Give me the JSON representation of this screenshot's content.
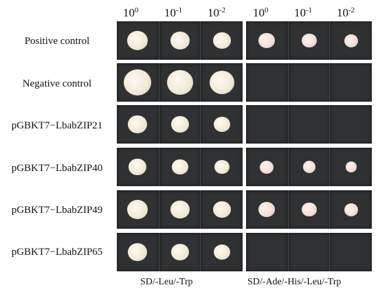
{
  "dilutions": [
    {
      "base": "10",
      "exp": "0"
    },
    {
      "base": "10",
      "exp": "-1"
    },
    {
      "base": "10",
      "exp": "-2"
    }
  ],
  "rows": [
    {
      "label": "Positive control",
      "left": [
        1,
        1,
        1
      ],
      "right": [
        1,
        1,
        1
      ]
    },
    {
      "label": "Negative control",
      "left": [
        1,
        1,
        1
      ],
      "right": [
        0,
        0,
        0
      ]
    },
    {
      "label": "pGBKT7−LbabZIP21",
      "left": [
        1,
        1,
        1
      ],
      "right": [
        0,
        0,
        0
      ]
    },
    {
      "label": "pGBKT7−LbabZIP40",
      "left": [
        1,
        1,
        1
      ],
      "right": [
        1,
        1,
        1
      ]
    },
    {
      "label": "pGBKT7−LbabZIP49",
      "left": [
        1,
        1,
        1
      ],
      "right": [
        1,
        1,
        1
      ]
    },
    {
      "label": "pGBKT7−LbabZIP65",
      "left": [
        1,
        1,
        1
      ],
      "right": [
        0,
        0,
        0
      ]
    }
  ],
  "media": {
    "left": "SD/-Leu/-Trp",
    "right": "SD/-Ade/-His/-Leu/-Trp"
  }
}
